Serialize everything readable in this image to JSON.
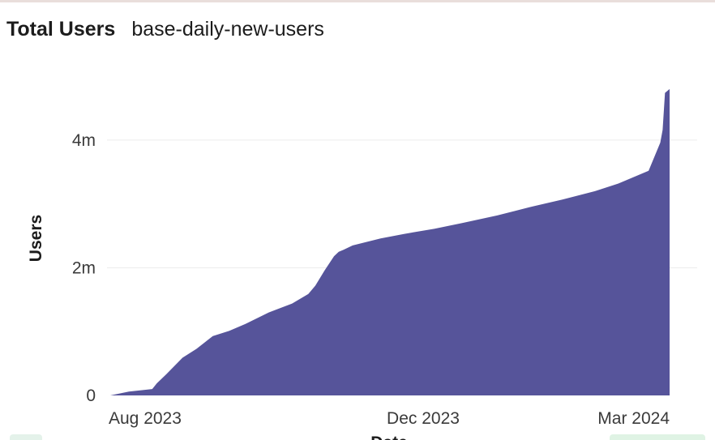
{
  "header": {
    "title": "Total Users",
    "subtitle": "base-daily-new-users"
  },
  "colors": {
    "area_fill": "#56549a",
    "gridline": "#ececec",
    "text": "#1c1c1c"
  },
  "chart_data": {
    "type": "area",
    "title": "Total Users",
    "subtitle": "base-daily-new-users",
    "xlabel": "Date",
    "ylabel": "Users",
    "x_ticks": [
      "Aug 2023",
      "Dec 2023",
      "Mar 2024"
    ],
    "y_ticks": [
      "0",
      "2m",
      "4m"
    ],
    "y_tick_values": [
      0,
      2000000,
      4000000
    ],
    "ylim": [
      0,
      4900000
    ],
    "xlim": [
      "2023-07-12",
      "2024-03-08"
    ],
    "grid": true,
    "legend": "none",
    "series": [
      {
        "x": [
          "2023-07-12",
          "2023-07-20",
          "2023-07-30",
          "2023-08-01",
          "2023-08-05",
          "2023-08-12",
          "2023-08-18",
          "2023-08-25",
          "2023-09-01",
          "2023-09-08",
          "2023-09-18",
          "2023-09-28",
          "2023-10-05",
          "2023-10-08",
          "2023-10-12",
          "2023-10-16",
          "2023-10-18",
          "2023-10-20",
          "2023-10-24",
          "2023-11-05",
          "2023-11-15",
          "2023-11-28",
          "2023-12-10",
          "2023-12-25",
          "2024-01-08",
          "2024-01-22",
          "2024-02-05",
          "2024-02-15",
          "2024-02-28",
          "2024-03-04",
          "2024-03-05",
          "2024-03-06",
          "2024-03-08"
        ],
        "values": [
          0,
          60000,
          100000,
          190000,
          330000,
          590000,
          730000,
          930000,
          1010000,
          1120000,
          1300000,
          1440000,
          1590000,
          1720000,
          1960000,
          2180000,
          2250000,
          2280000,
          2350000,
          2460000,
          2530000,
          2610000,
          2700000,
          2820000,
          2950000,
          3070000,
          3200000,
          3320000,
          3520000,
          3960000,
          4160000,
          4740000,
          4800000
        ]
      }
    ]
  }
}
